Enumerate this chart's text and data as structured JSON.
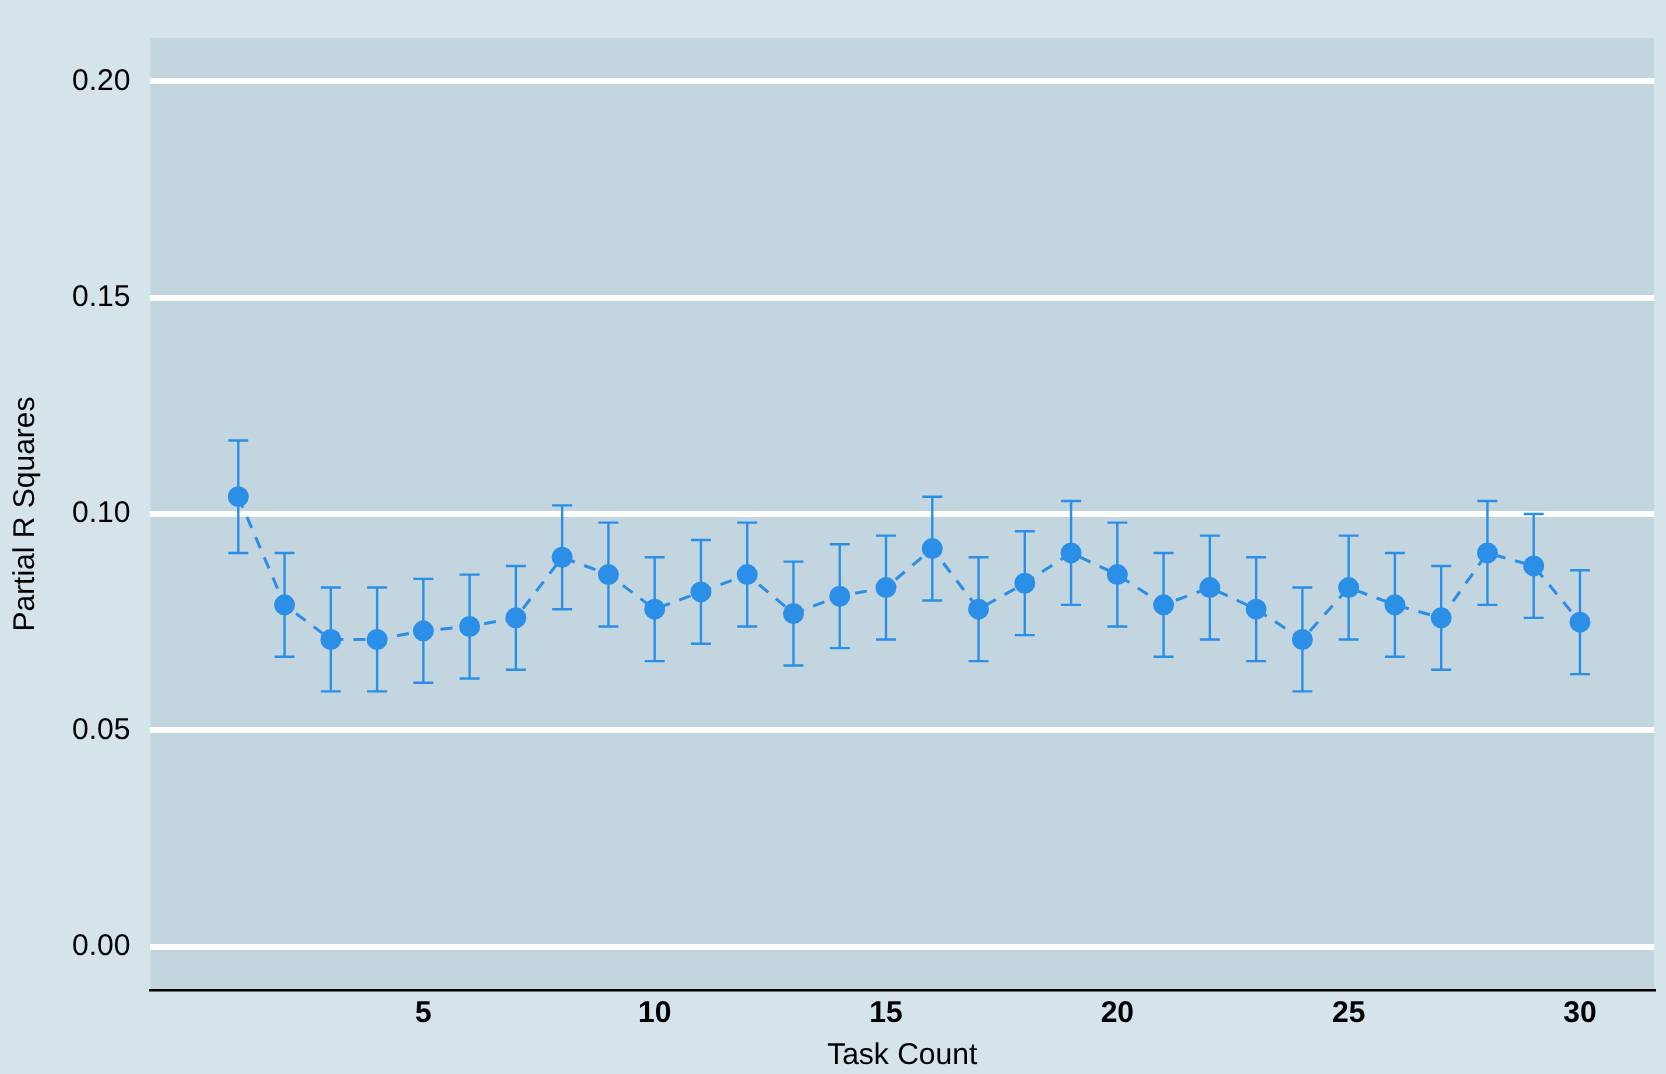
{
  "chart_data": {
    "type": "line",
    "xlabel": "Task Count",
    "ylabel": "Partial R Squares",
    "x": [
      1,
      2,
      3,
      4,
      5,
      6,
      7,
      8,
      9,
      10,
      11,
      12,
      13,
      14,
      15,
      16,
      17,
      18,
      19,
      20,
      21,
      22,
      23,
      24,
      25,
      26,
      27,
      28,
      29,
      30
    ],
    "series": [
      {
        "color": "#2b8fe8",
        "values": [
          0.104,
          0.079,
          0.071,
          0.071,
          0.073,
          0.074,
          0.076,
          0.09,
          0.086,
          0.078,
          0.082,
          0.086,
          0.077,
          0.081,
          0.083,
          0.092,
          0.078,
          0.084,
          0.091,
          0.086,
          0.079,
          0.083,
          0.078,
          0.071,
          0.083,
          0.079,
          0.076,
          0.091,
          0.088,
          0.075
        ],
        "errors": [
          0.013,
          0.012,
          0.012,
          0.012,
          0.012,
          0.012,
          0.012,
          0.012,
          0.012,
          0.012,
          0.012,
          0.012,
          0.012,
          0.012,
          0.012,
          0.012,
          0.012,
          0.012,
          0.012,
          0.012,
          0.012,
          0.012,
          0.012,
          0.012,
          0.012,
          0.012,
          0.012,
          0.012,
          0.012,
          0.012
        ]
      }
    ],
    "xlim": [
      -0.9,
      31.6
    ],
    "xticks": [
      5,
      10,
      15,
      20,
      25,
      30
    ],
    "ylim": [
      -0.01,
      0.21
    ],
    "yticks": [
      {
        "value": 0,
        "label": "0.00"
      },
      0.05,
      {
        "value": 0.1,
        "label": "0.10"
      },
      0.15,
      {
        "value": 0.2,
        "label": "0.20"
      }
    ],
    "grid": "y",
    "legend": false,
    "marker": "circle",
    "line_style": "dashed"
  }
}
